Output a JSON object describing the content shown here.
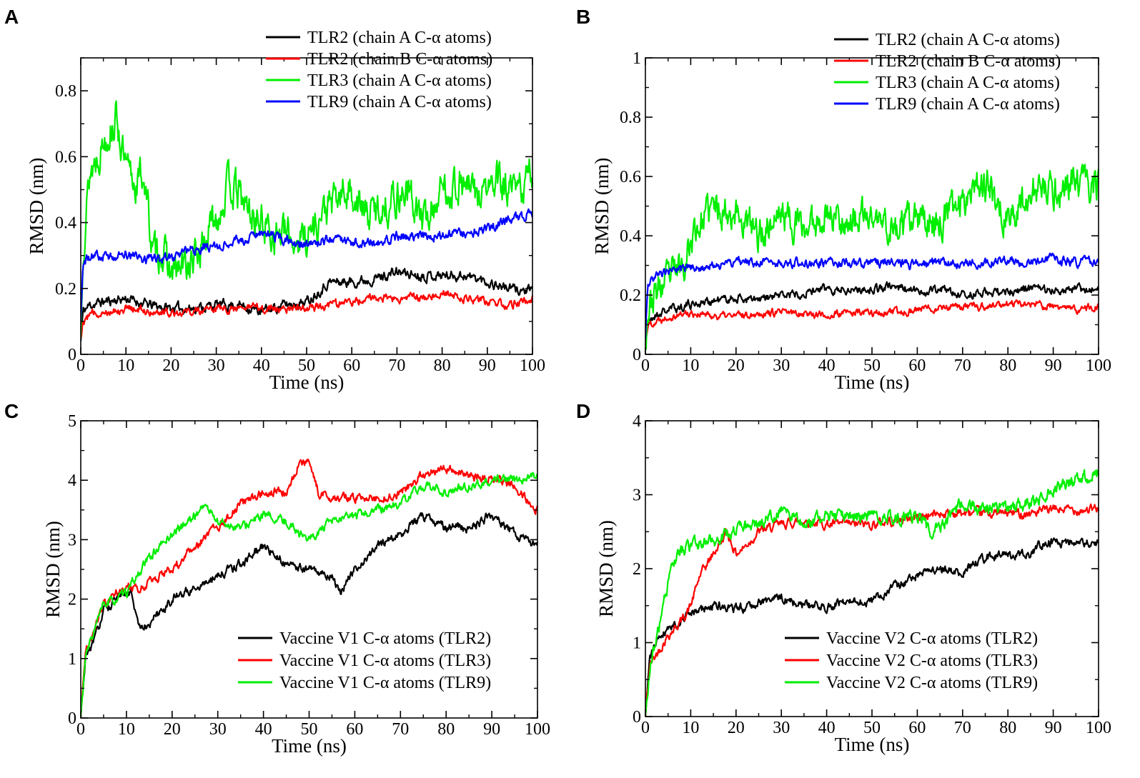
{
  "chart_data": [
    {
      "panel": "A",
      "type": "line",
      "title": "",
      "xlabel": "Time (ns)",
      "ylabel": "RMSD (nm)",
      "xlim": [
        0,
        100
      ],
      "ylim": [
        0,
        0.9
      ],
      "xticks": [
        0,
        10,
        20,
        30,
        40,
        50,
        60,
        70,
        80,
        90,
        100
      ],
      "xtick_labels": [
        "0",
        "10",
        "20",
        "30",
        "40",
        "50",
        "60",
        "70",
        "80",
        "90",
        "100"
      ],
      "yticks": [
        0,
        0.2,
        0.4,
        0.6,
        0.8
      ],
      "ytick_labels": [
        "0",
        "0.2",
        "0.4",
        "0.6",
        "0.8"
      ],
      "legend_position": "top-right",
      "series": [
        {
          "name": "TLR2 (chain A C-α atoms)",
          "color": "#000000",
          "noise": 0.012,
          "seed": 11,
          "x": [
            0,
            0.5,
            2,
            5,
            10,
            15,
            20,
            25,
            30,
            35,
            40,
            45,
            50,
            55,
            60,
            65,
            70,
            75,
            80,
            85,
            90,
            95,
            100
          ],
          "y": [
            0.04,
            0.13,
            0.15,
            0.16,
            0.17,
            0.15,
            0.14,
            0.14,
            0.15,
            0.15,
            0.13,
            0.15,
            0.16,
            0.22,
            0.22,
            0.23,
            0.25,
            0.24,
            0.24,
            0.24,
            0.22,
            0.2,
            0.19
          ]
        },
        {
          "name": "TLR2 (chain B C-α atoms)",
          "color": "#ff0000",
          "noise": 0.01,
          "seed": 12,
          "x": [
            0,
            0.5,
            2,
            5,
            10,
            15,
            20,
            25,
            30,
            35,
            40,
            45,
            50,
            55,
            60,
            65,
            70,
            75,
            80,
            85,
            90,
            95,
            100
          ],
          "y": [
            0.05,
            0.1,
            0.12,
            0.13,
            0.14,
            0.13,
            0.13,
            0.13,
            0.14,
            0.14,
            0.14,
            0.14,
            0.14,
            0.15,
            0.16,
            0.17,
            0.17,
            0.17,
            0.19,
            0.17,
            0.16,
            0.15,
            0.17
          ]
        },
        {
          "name": "TLR3 (chain A C-α atoms)",
          "color": "#00ee00",
          "noise": 0.045,
          "seed": 13,
          "x": [
            0,
            0.5,
            2,
            4,
            6,
            8,
            10,
            12,
            14,
            16,
            18,
            20,
            25,
            30,
            33,
            38,
            42,
            47,
            50,
            55,
            60,
            63,
            67,
            72,
            76,
            80,
            84,
            88,
            92,
            96,
            100
          ],
          "y": [
            0.05,
            0.35,
            0.55,
            0.62,
            0.68,
            0.72,
            0.55,
            0.52,
            0.55,
            0.3,
            0.32,
            0.24,
            0.28,
            0.42,
            0.52,
            0.42,
            0.38,
            0.35,
            0.36,
            0.45,
            0.5,
            0.42,
            0.45,
            0.5,
            0.4,
            0.5,
            0.52,
            0.48,
            0.52,
            0.48,
            0.55
          ]
        },
        {
          "name": "TLR9 (chain A C-α atoms)",
          "color": "#0000ff",
          "noise": 0.012,
          "seed": 14,
          "x": [
            0,
            0.5,
            2,
            5,
            10,
            15,
            20,
            25,
            30,
            35,
            40,
            45,
            50,
            55,
            60,
            65,
            70,
            75,
            80,
            85,
            90,
            95,
            100
          ],
          "y": [
            0.1,
            0.28,
            0.3,
            0.3,
            0.3,
            0.29,
            0.29,
            0.32,
            0.33,
            0.34,
            0.37,
            0.35,
            0.33,
            0.35,
            0.34,
            0.34,
            0.36,
            0.36,
            0.36,
            0.37,
            0.38,
            0.41,
            0.43
          ]
        }
      ]
    },
    {
      "panel": "B",
      "type": "line",
      "title": "",
      "xlabel": "Time (ns)",
      "ylabel": "RMSD (nm)",
      "xlim": [
        0,
        100
      ],
      "ylim": [
        0,
        1
      ],
      "xticks": [
        0,
        10,
        20,
        30,
        40,
        50,
        60,
        70,
        80,
        90,
        100
      ],
      "xtick_labels": [
        "0",
        "10",
        "20",
        "30",
        "40",
        "50",
        "60",
        "70",
        "80",
        "90",
        "100"
      ],
      "yticks": [
        0,
        0.2,
        0.4,
        0.6,
        0.8,
        1
      ],
      "ytick_labels": [
        "0",
        "0.2",
        "0.4",
        "0.6",
        "0.8",
        "1"
      ],
      "legend_position": "top-right",
      "series": [
        {
          "name": "TLR2 (chain A C-α atoms)",
          "color": "#000000",
          "noise": 0.012,
          "seed": 21,
          "x": [
            0,
            0.5,
            2,
            5,
            10,
            15,
            20,
            25,
            30,
            35,
            40,
            45,
            50,
            55,
            60,
            65,
            70,
            75,
            80,
            85,
            90,
            95,
            100
          ],
          "y": [
            0.04,
            0.1,
            0.13,
            0.15,
            0.17,
            0.18,
            0.19,
            0.18,
            0.2,
            0.21,
            0.22,
            0.22,
            0.22,
            0.23,
            0.21,
            0.22,
            0.2,
            0.21,
            0.21,
            0.22,
            0.22,
            0.22,
            0.22
          ]
        },
        {
          "name": "TLR2 (chain B C-α atoms)",
          "color": "#ff0000",
          "noise": 0.01,
          "seed": 22,
          "x": [
            0,
            0.5,
            2,
            5,
            10,
            15,
            20,
            25,
            30,
            35,
            40,
            45,
            50,
            55,
            60,
            65,
            70,
            75,
            80,
            85,
            90,
            95,
            100
          ],
          "y": [
            0.04,
            0.1,
            0.11,
            0.13,
            0.14,
            0.13,
            0.13,
            0.14,
            0.14,
            0.14,
            0.13,
            0.14,
            0.14,
            0.14,
            0.15,
            0.16,
            0.16,
            0.16,
            0.17,
            0.17,
            0.16,
            0.15,
            0.16
          ]
        },
        {
          "name": "TLR3 (chain A C-α atoms)",
          "color": "#00ee00",
          "noise": 0.045,
          "seed": 23,
          "x": [
            0,
            0.5,
            2,
            5,
            8,
            11,
            15,
            20,
            25,
            30,
            35,
            40,
            45,
            50,
            55,
            60,
            65,
            70,
            73,
            76,
            80,
            85,
            90,
            95,
            100
          ],
          "y": [
            0.05,
            0.15,
            0.2,
            0.25,
            0.3,
            0.42,
            0.5,
            0.48,
            0.4,
            0.48,
            0.42,
            0.48,
            0.45,
            0.46,
            0.42,
            0.45,
            0.45,
            0.52,
            0.6,
            0.55,
            0.45,
            0.55,
            0.55,
            0.58,
            0.57
          ]
        },
        {
          "name": "TLR9 (chain A C-α atoms)",
          "color": "#0000ff",
          "noise": 0.012,
          "seed": 24,
          "x": [
            0,
            0.5,
            2,
            5,
            10,
            15,
            20,
            25,
            30,
            35,
            40,
            45,
            50,
            55,
            60,
            65,
            70,
            75,
            80,
            85,
            90,
            95,
            100
          ],
          "y": [
            0.05,
            0.24,
            0.26,
            0.28,
            0.29,
            0.3,
            0.31,
            0.31,
            0.31,
            0.31,
            0.31,
            0.31,
            0.31,
            0.31,
            0.3,
            0.31,
            0.31,
            0.31,
            0.32,
            0.31,
            0.32,
            0.31,
            0.32
          ]
        }
      ]
    },
    {
      "panel": "C",
      "type": "line",
      "title": "",
      "xlabel": "Time (ns)",
      "ylabel": "RMSD (nm)",
      "xlim": [
        0,
        100
      ],
      "ylim": [
        0,
        5
      ],
      "xticks": [
        0,
        10,
        20,
        30,
        40,
        50,
        60,
        70,
        80,
        90,
        100
      ],
      "xtick_labels": [
        "0",
        "10",
        "20",
        "30",
        "40",
        "50",
        "60",
        "70",
        "80",
        "90",
        "100"
      ],
      "yticks": [
        0,
        1,
        2,
        3,
        4,
        5
      ],
      "ytick_labels": [
        "0",
        "1",
        "2",
        "3",
        "4",
        "5"
      ],
      "legend_position": "bottom-right",
      "series": [
        {
          "name": "Vaccine V1 C-α atoms (TLR2)",
          "color": "#000000",
          "noise": 0.06,
          "seed": 31,
          "x": [
            0,
            1,
            3,
            5,
            8,
            11,
            13,
            15,
            20,
            25,
            30,
            35,
            40,
            45,
            50,
            55,
            57,
            60,
            65,
            70,
            75,
            80,
            85,
            90,
            95,
            100
          ],
          "y": [
            0.0,
            1.0,
            1.3,
            1.8,
            2.0,
            2.1,
            1.5,
            1.6,
            2.0,
            2.2,
            2.4,
            2.6,
            2.9,
            2.6,
            2.5,
            2.4,
            2.1,
            2.5,
            2.9,
            3.1,
            3.4,
            3.2,
            3.2,
            3.4,
            3.1,
            2.9
          ]
        },
        {
          "name": "Vaccine V1 C-α atoms (TLR3)",
          "color": "#ff0000",
          "noise": 0.06,
          "seed": 32,
          "x": [
            0,
            1,
            3,
            5,
            8,
            10,
            13,
            15,
            20,
            25,
            30,
            35,
            40,
            45,
            48,
            50,
            52,
            55,
            60,
            65,
            70,
            75,
            80,
            85,
            90,
            95,
            100
          ],
          "y": [
            0.0,
            1.1,
            1.5,
            1.9,
            2.1,
            2.2,
            2.2,
            2.3,
            2.5,
            2.9,
            3.2,
            3.6,
            3.8,
            3.8,
            4.3,
            4.3,
            3.8,
            3.7,
            3.7,
            3.7,
            3.8,
            4.1,
            4.2,
            4.1,
            4.0,
            3.9,
            3.5
          ]
        },
        {
          "name": "Vaccine V1 C-α atoms (TLR9)",
          "color": "#00ee00",
          "noise": 0.06,
          "seed": 33,
          "x": [
            0,
            1,
            3,
            5,
            8,
            10,
            15,
            20,
            25,
            27,
            30,
            35,
            40,
            45,
            50,
            55,
            60,
            65,
            70,
            75,
            80,
            85,
            90,
            95,
            100
          ],
          "y": [
            0.0,
            1.0,
            1.5,
            1.9,
            2.0,
            2.1,
            2.7,
            3.1,
            3.4,
            3.6,
            3.3,
            3.2,
            3.4,
            3.3,
            3.0,
            3.3,
            3.4,
            3.5,
            3.6,
            3.9,
            3.8,
            3.9,
            4.0,
            4.0,
            4.1
          ]
        }
      ]
    },
    {
      "panel": "D",
      "type": "line",
      "title": "",
      "xlabel": "Time (ns)",
      "ylabel": "RMSD (nm)",
      "xlim": [
        0,
        100
      ],
      "ylim": [
        0,
        4
      ],
      "xticks": [
        0,
        10,
        20,
        30,
        40,
        50,
        60,
        70,
        80,
        90,
        100
      ],
      "xtick_labels": [
        "0",
        "10",
        "20",
        "30",
        "40",
        "50",
        "60",
        "70",
        "80",
        "90",
        "100"
      ],
      "yticks": [
        0,
        1,
        2,
        3,
        4
      ],
      "ytick_labels": [
        "0",
        "1",
        "2",
        "3",
        "4"
      ],
      "legend_position": "bottom-right",
      "series": [
        {
          "name": "Vaccine V2 C-α atoms (TLR2)",
          "color": "#000000",
          "noise": 0.05,
          "seed": 41,
          "x": [
            0,
            1,
            3,
            5,
            8,
            10,
            15,
            20,
            25,
            30,
            35,
            40,
            45,
            50,
            55,
            60,
            65,
            70,
            75,
            80,
            85,
            88,
            90,
            95,
            100
          ],
          "y": [
            0.0,
            0.8,
            1.1,
            1.2,
            1.3,
            1.4,
            1.5,
            1.45,
            1.55,
            1.6,
            1.5,
            1.5,
            1.55,
            1.55,
            1.75,
            1.9,
            2.0,
            1.95,
            2.15,
            2.2,
            2.2,
            2.35,
            2.35,
            2.35,
            2.35
          ]
        },
        {
          "name": "Vaccine V2 C-α atoms (TLR3)",
          "color": "#ff0000",
          "noise": 0.05,
          "seed": 42,
          "x": [
            0,
            1,
            3,
            5,
            8,
            10,
            12,
            15,
            18,
            20,
            22,
            25,
            30,
            35,
            40,
            45,
            50,
            55,
            60,
            65,
            70,
            75,
            80,
            85,
            90,
            95,
            100
          ],
          "y": [
            0.0,
            0.7,
            0.9,
            1.1,
            1.3,
            1.5,
            1.9,
            2.2,
            2.5,
            2.2,
            2.3,
            2.5,
            2.6,
            2.65,
            2.6,
            2.6,
            2.6,
            2.65,
            2.7,
            2.75,
            2.75,
            2.75,
            2.75,
            2.75,
            2.8,
            2.8,
            2.8
          ]
        },
        {
          "name": "Vaccine V2 C-α atoms (TLR9)",
          "color": "#00ee00",
          "noise": 0.07,
          "seed": 43,
          "x": [
            0,
            1,
            3,
            5,
            7,
            10,
            15,
            20,
            25,
            30,
            35,
            40,
            45,
            50,
            55,
            60,
            63,
            66,
            70,
            75,
            80,
            85,
            90,
            95,
            100
          ],
          "y": [
            0.0,
            0.7,
            1.2,
            1.8,
            2.2,
            2.3,
            2.4,
            2.5,
            2.6,
            2.8,
            2.6,
            2.7,
            2.7,
            2.7,
            2.7,
            2.7,
            2.5,
            2.6,
            2.9,
            2.8,
            2.8,
            2.9,
            3.1,
            3.2,
            3.3
          ]
        }
      ]
    }
  ]
}
